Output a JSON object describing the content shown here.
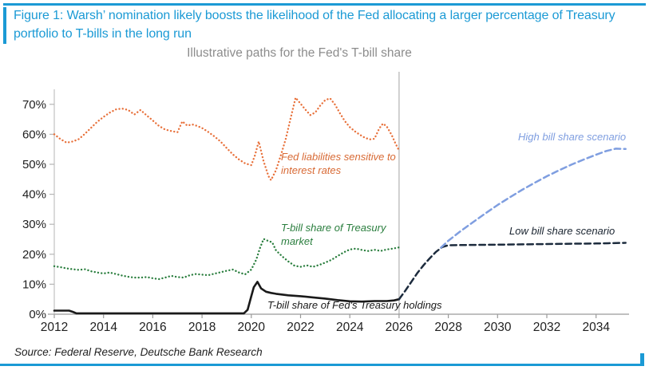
{
  "accent_color": "#1B9AD5",
  "figure": {
    "title": "Figure 1: Warsh’ nomination likely boosts the likelihood of the Fed allocating a larger percentage of Treasury portfolio to T-bills in the long run",
    "source": "Source: Federal Reserve, Deutsche Bank Research"
  },
  "chart_data": {
    "type": "line",
    "title": "Illustrative paths for the Fed's T-bill share",
    "xlabel": "",
    "ylabel": "",
    "xlim": [
      2011.6,
      2035.6
    ],
    "ylim": [
      0,
      75
    ],
    "x_ticks": [
      2012,
      2014,
      2016,
      2018,
      2020,
      2022,
      2024,
      2026,
      2028,
      2030,
      2032,
      2034
    ],
    "y_ticks": [
      0,
      10,
      20,
      30,
      40,
      50,
      60,
      70
    ],
    "y_tick_suffix": "%",
    "grid": false,
    "legend_position": "inline-annotations",
    "divider_x": 2026,
    "series": [
      {
        "name": "Fed liabilities sensitive to interest rates",
        "color": "#E8713B",
        "style": "dotted",
        "points": [
          [
            2012,
            60
          ],
          [
            2012.25,
            58.4
          ],
          [
            2012.5,
            57.2
          ],
          [
            2012.75,
            57.6
          ],
          [
            2013,
            58.4
          ],
          [
            2013.25,
            60.2
          ],
          [
            2013.5,
            62.2
          ],
          [
            2013.75,
            64.2
          ],
          [
            2014,
            65.8
          ],
          [
            2014.25,
            67.2
          ],
          [
            2014.5,
            68.3
          ],
          [
            2014.75,
            68.6
          ],
          [
            2015,
            68.1
          ],
          [
            2015.25,
            66.6
          ],
          [
            2015.5,
            68.1
          ],
          [
            2015.75,
            66.3
          ],
          [
            2016,
            64.6
          ],
          [
            2016.25,
            62.8
          ],
          [
            2016.5,
            61.6
          ],
          [
            2016.75,
            61.1
          ],
          [
            2017,
            60.7
          ],
          [
            2017.2,
            64.3
          ],
          [
            2017.4,
            62.9
          ],
          [
            2017.6,
            63.3
          ],
          [
            2017.8,
            62.8
          ],
          [
            2018,
            62.1
          ],
          [
            2018.25,
            60.8
          ],
          [
            2018.5,
            59.3
          ],
          [
            2018.75,
            57.6
          ],
          [
            2019,
            55.4
          ],
          [
            2019.25,
            53.3
          ],
          [
            2019.5,
            51.6
          ],
          [
            2019.75,
            50.3
          ],
          [
            2020,
            49.7
          ],
          [
            2020.15,
            53
          ],
          [
            2020.3,
            57.6
          ],
          [
            2020.5,
            51
          ],
          [
            2020.7,
            46
          ],
          [
            2020.8,
            44.7
          ],
          [
            2021,
            48
          ],
          [
            2021.2,
            53
          ],
          [
            2021.4,
            58.5
          ],
          [
            2021.6,
            65.5
          ],
          [
            2021.8,
            72.2
          ],
          [
            2022,
            70.2
          ],
          [
            2022.2,
            68.2
          ],
          [
            2022.4,
            66.4
          ],
          [
            2022.6,
            67.3
          ],
          [
            2022.8,
            69.6
          ],
          [
            2023,
            71.4
          ],
          [
            2023.2,
            72
          ],
          [
            2023.4,
            69.9
          ],
          [
            2023.6,
            67
          ],
          [
            2023.8,
            64.4
          ],
          [
            2024,
            62.4
          ],
          [
            2024.2,
            61
          ],
          [
            2024.4,
            59.9
          ],
          [
            2024.6,
            58.9
          ],
          [
            2024.8,
            58.3
          ],
          [
            2025,
            58.5
          ],
          [
            2025.2,
            62
          ],
          [
            2025.35,
            63.6
          ],
          [
            2025.5,
            62.6
          ],
          [
            2025.7,
            59.8
          ],
          [
            2025.85,
            57
          ],
          [
            2026,
            54.6
          ]
        ]
      },
      {
        "name": "T-bill share of Treasury market",
        "color": "#2A7E3E",
        "style": "dotted",
        "points": [
          [
            2012,
            16
          ],
          [
            2012.25,
            15.7
          ],
          [
            2012.5,
            15.3
          ],
          [
            2012.75,
            15
          ],
          [
            2013,
            14.8
          ],
          [
            2013.25,
            15
          ],
          [
            2013.5,
            14.3
          ],
          [
            2013.75,
            13.9
          ],
          [
            2014,
            13.6
          ],
          [
            2014.25,
            13.9
          ],
          [
            2014.5,
            13.4
          ],
          [
            2014.75,
            12.9
          ],
          [
            2015,
            12.5
          ],
          [
            2015.25,
            12.2
          ],
          [
            2015.5,
            12.2
          ],
          [
            2015.75,
            12.4
          ],
          [
            2016,
            12
          ],
          [
            2016.25,
            11.7
          ],
          [
            2016.5,
            12.2
          ],
          [
            2016.75,
            12.8
          ],
          [
            2017,
            12.4
          ],
          [
            2017.25,
            12.2
          ],
          [
            2017.5,
            13
          ],
          [
            2017.75,
            13.4
          ],
          [
            2018,
            13.2
          ],
          [
            2018.25,
            13
          ],
          [
            2018.5,
            13.5
          ],
          [
            2018.75,
            14
          ],
          [
            2019,
            14.5
          ],
          [
            2019.25,
            14.9
          ],
          [
            2019.5,
            13.9
          ],
          [
            2019.75,
            13.3
          ],
          [
            2020,
            14.9
          ],
          [
            2020.2,
            18.2
          ],
          [
            2020.35,
            22
          ],
          [
            2020.5,
            25.1
          ],
          [
            2020.7,
            24.4
          ],
          [
            2020.85,
            24
          ],
          [
            2021,
            21.3
          ],
          [
            2021.25,
            19.3
          ],
          [
            2021.5,
            17.6
          ],
          [
            2021.75,
            16.2
          ],
          [
            2022,
            15.8
          ],
          [
            2022.25,
            16.3
          ],
          [
            2022.5,
            15.8
          ],
          [
            2022.75,
            16.4
          ],
          [
            2023,
            17.2
          ],
          [
            2023.25,
            18.1
          ],
          [
            2023.5,
            19.4
          ],
          [
            2023.75,
            20.6
          ],
          [
            2024,
            21.6
          ],
          [
            2024.25,
            21.9
          ],
          [
            2024.5,
            21.4
          ],
          [
            2024.75,
            21.1
          ],
          [
            2025,
            21.5
          ],
          [
            2025.25,
            21.1
          ],
          [
            2025.5,
            21.6
          ],
          [
            2025.75,
            21.9
          ],
          [
            2026,
            22.3
          ]
        ]
      },
      {
        "name": "T-bill share of Fed's Treasury holdings",
        "color": "#1A1A1A",
        "style": "solid",
        "points": [
          [
            2012,
            1.2
          ],
          [
            2012.6,
            1.2
          ],
          [
            2012.75,
            0.8
          ],
          [
            2012.9,
            0.3
          ],
          [
            2014,
            0.3
          ],
          [
            2016,
            0.3
          ],
          [
            2018,
            0.3
          ],
          [
            2019.7,
            0.3
          ],
          [
            2019.85,
            1.5
          ],
          [
            2020,
            6
          ],
          [
            2020.1,
            9
          ],
          [
            2020.25,
            10.8
          ],
          [
            2020.4,
            8.6
          ],
          [
            2020.6,
            7.5
          ],
          [
            2020.8,
            7.1
          ],
          [
            2021,
            6.8
          ],
          [
            2021.5,
            6.3
          ],
          [
            2022,
            6
          ],
          [
            2022.5,
            5.6
          ],
          [
            2023,
            5.2
          ],
          [
            2023.5,
            4.7
          ],
          [
            2024,
            4.3
          ],
          [
            2024.5,
            4.2
          ],
          [
            2025,
            4.4
          ],
          [
            2025.5,
            4.4
          ],
          [
            2025.8,
            4.6
          ],
          [
            2026,
            5
          ]
        ]
      },
      {
        "name": "Low bill share scenario",
        "color": "#1C2B3D",
        "style": "dashed",
        "points": [
          [
            2026,
            5
          ],
          [
            2026.25,
            7.8
          ],
          [
            2026.5,
            10.8
          ],
          [
            2026.75,
            13.8
          ],
          [
            2027,
            16.4
          ],
          [
            2027.25,
            18.7
          ],
          [
            2027.5,
            20.8
          ],
          [
            2027.75,
            22.4
          ],
          [
            2028,
            23
          ],
          [
            2029,
            23.1
          ],
          [
            2030,
            23.2
          ],
          [
            2031,
            23.3
          ],
          [
            2032,
            23.4
          ],
          [
            2033,
            23.5
          ],
          [
            2034,
            23.6
          ],
          [
            2035.2,
            23.8
          ]
        ]
      },
      {
        "name": "High bill share scenario",
        "color": "#7F9EE0",
        "style": "dashed",
        "points": [
          [
            2027.7,
            22.2
          ],
          [
            2028,
            24.5
          ],
          [
            2028.5,
            27.7
          ],
          [
            2029,
            30.7
          ],
          [
            2029.5,
            33.6
          ],
          [
            2030,
            36.4
          ],
          [
            2030.5,
            39
          ],
          [
            2031,
            41.5
          ],
          [
            2031.5,
            43.8
          ],
          [
            2032,
            46
          ],
          [
            2032.5,
            48
          ],
          [
            2033,
            49.9
          ],
          [
            2033.5,
            51.6
          ],
          [
            2034,
            53.2
          ],
          [
            2034.4,
            54.4
          ],
          [
            2034.8,
            55.2
          ],
          [
            2035.2,
            55.1
          ]
        ]
      }
    ],
    "annotations": [
      {
        "lines": [
          "Fed liabilities sensitive to",
          "interest rates"
        ],
        "color": "#D86A35"
      },
      {
        "lines": [
          "T-bill share of Treasury",
          "market"
        ],
        "color": "#2A7E3E"
      },
      {
        "lines": [
          "T-bill share of Fed's Treasury holdings"
        ],
        "color": "#1A1A1A"
      },
      {
        "lines": [
          "High bill share scenario"
        ],
        "color": "#7F9EE0"
      },
      {
        "lines": [
          "Low bill share scenario"
        ],
        "color": "#1A2430"
      }
    ]
  }
}
